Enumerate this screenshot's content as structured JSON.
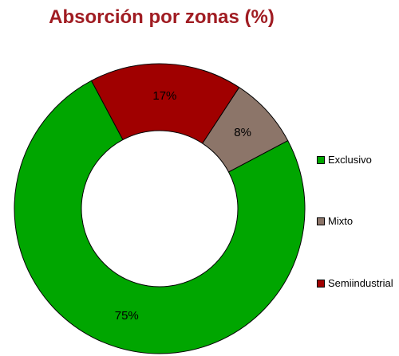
{
  "chart_data": {
    "type": "pie",
    "subtype": "donut",
    "title": "Absorción por zonas (%)",
    "categories": [
      "Exclusivo",
      "Mixto",
      "Semiindustrial"
    ],
    "values": [
      75,
      8,
      17
    ],
    "value_labels": [
      "75%",
      "8%",
      "17%"
    ],
    "colors": [
      "#00a600",
      "#8c7569",
      "#a00000"
    ],
    "legend_position": "right",
    "start_angle_deg": 118,
    "direction": "counterclockwise"
  }
}
